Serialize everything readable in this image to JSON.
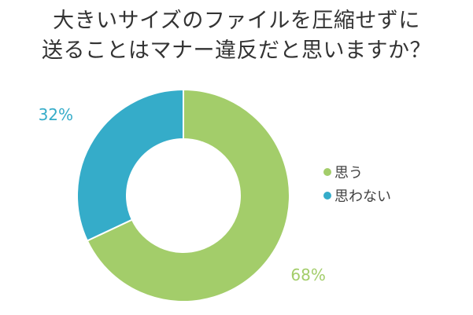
{
  "title_lines": [
    "大きいサイズのファイルを圧縮せずに",
    "送ることはマナー違反だと思いますか？"
  ],
  "chart_data": {
    "type": "pie",
    "variant": "donut",
    "title": "大きいサイズのファイルを圧縮せずに送ることはマナー違反だと思いますか？",
    "categories": [
      "思う",
      "思わない"
    ],
    "values": [
      68,
      32
    ],
    "value_labels": [
      "68%",
      "32%"
    ],
    "colors": [
      "#a3cd6a",
      "#35acc9"
    ],
    "legend_position": "right"
  }
}
